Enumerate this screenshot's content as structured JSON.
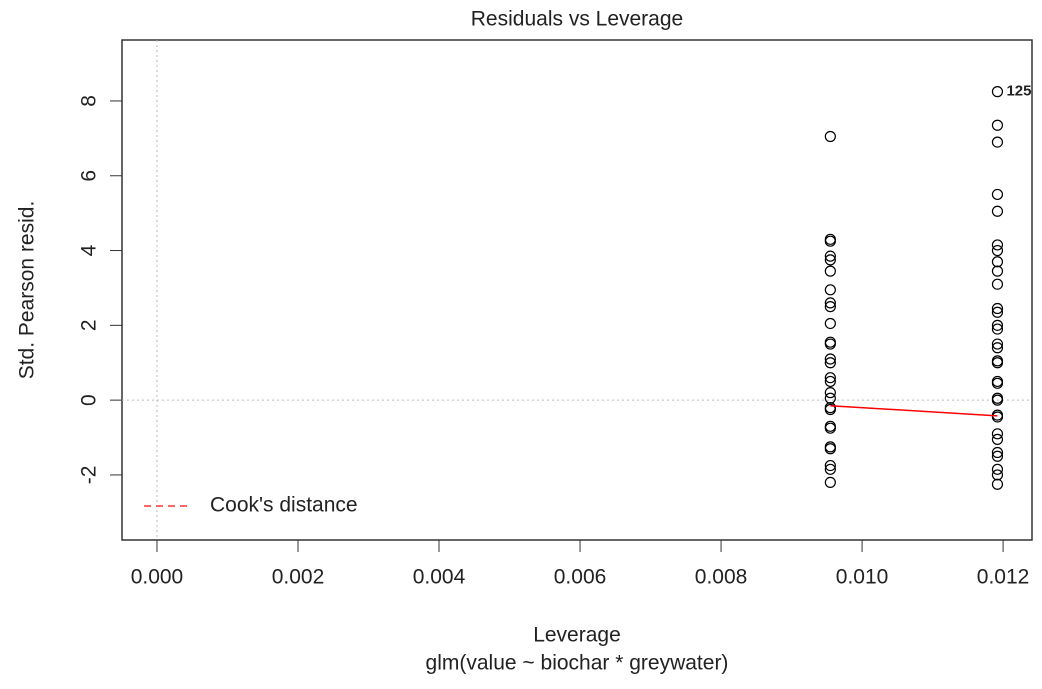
{
  "chart_data": {
    "type": "scatter",
    "title": "Residuals vs Leverage",
    "x_label": "Leverage",
    "subtitle": "glm(value ~ biochar * greywater)",
    "y_label": "Std. Pearson resid.",
    "xlim": [
      -0.000496,
      0.01241
    ],
    "ylim": [
      -3.74,
      9.63
    ],
    "xticks": [
      {
        "value": 0,
        "label": "0.000"
      },
      {
        "value": 0.002,
        "label": "0.002"
      },
      {
        "value": 0.004,
        "label": "0.004"
      },
      {
        "value": 0.006,
        "label": "0.006"
      },
      {
        "value": 0.008,
        "label": "0.008"
      },
      {
        "value": 0.01,
        "label": "0.010"
      },
      {
        "value": 0.012,
        "label": "0.012"
      }
    ],
    "yticks": [
      -2,
      0,
      2,
      4,
      6,
      8
    ],
    "reference_lines": {
      "x": 0,
      "y": 0
    },
    "series": [
      {
        "color": "#000000",
        "x": [
          0.00955,
          0.00955,
          0.00955,
          0.00955,
          0.00955,
          0.00955,
          0.00955,
          0.00955,
          0.00955,
          0.00955,
          0.00955,
          0.00955,
          0.00955,
          0.00955,
          0.00955,
          0.00955,
          0.00955,
          0.00955,
          0.00955,
          0.00955,
          0.00955,
          0.00955,
          0.00955,
          0.00955,
          0.00955,
          0.00955,
          0.00955,
          0.01192,
          0.01192,
          0.01192,
          0.01192,
          0.01192,
          0.01192,
          0.01192,
          0.01192,
          0.01192,
          0.01192,
          0.01192,
          0.01192,
          0.01192,
          0.01192,
          0.01192,
          0.01192,
          0.01192,
          0.01192,
          0.01192,
          0.01192,
          0.01192,
          0.01192,
          0.01192,
          0.01192,
          0.01192,
          0.01192,
          0.01192,
          0.01192,
          0.01192,
          0.01192,
          0.01192
        ],
        "values": [
          7.05,
          4.3,
          4.25,
          3.85,
          3.75,
          3.45,
          2.95,
          2.6,
          2.5,
          2.05,
          1.55,
          1.5,
          1.1,
          1.0,
          0.6,
          0.5,
          0.2,
          0.05,
          -0.2,
          -0.25,
          -0.7,
          -0.75,
          -1.25,
          -1.3,
          -1.75,
          -1.85,
          -2.2,
          8.25,
          7.35,
          6.9,
          5.5,
          5.05,
          4.15,
          4.0,
          3.7,
          3.45,
          3.1,
          2.45,
          2.35,
          2.0,
          1.9,
          1.5,
          1.4,
          1.05,
          1.0,
          0.5,
          0.45,
          0.05,
          0.0,
          -0.4,
          -0.45,
          -0.9,
          -1.05,
          -1.4,
          -1.5,
          -1.85,
          -2.0,
          -2.25
        ]
      }
    ],
    "smooth": {
      "color": "#ff0000",
      "x": [
        0.00955,
        0.01192
      ],
      "values": [
        -0.15,
        -0.42
      ]
    },
    "annotations": [
      {
        "text": "125",
        "x": 0.01192,
        "y": 8.25
      }
    ],
    "legend": {
      "label": "Cook's distance",
      "color": "#ff6666",
      "position": "bottom-left"
    }
  }
}
